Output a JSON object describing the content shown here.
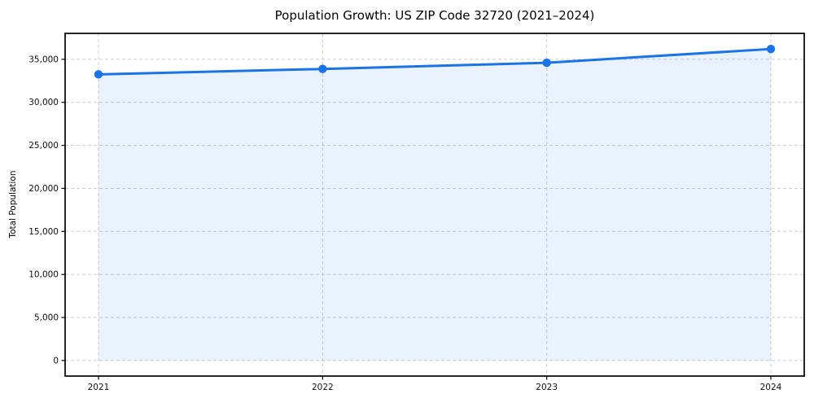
{
  "chart_data": {
    "type": "line",
    "title": "Population Growth: US ZIP Code 32720 (2021–2024)",
    "xlabel": "",
    "ylabel": "Total Population",
    "categories": [
      "2021",
      "2022",
      "2023",
      "2024"
    ],
    "series": [
      {
        "name": "Total Population",
        "values": [
          33250,
          33880,
          34600,
          36200
        ]
      }
    ],
    "yticks": [
      0,
      5000,
      10000,
      15000,
      20000,
      25000,
      30000,
      35000
    ],
    "ytick_labels": [
      "0",
      "5,000",
      "10,000",
      "15,000",
      "20,000",
      "25,000",
      "30,000",
      "35,000"
    ],
    "ylim": [
      -1810,
      38015
    ],
    "grid": true,
    "grid_style": "dashed",
    "legend": false,
    "area_fill": true,
    "marker": "circle",
    "colors": {
      "line": "#1a73e8",
      "marker": "#1a73e8",
      "area_fill": "rgba(26,115,232,0.09)",
      "grid": "#cdcdcd",
      "spine": "#000000",
      "text": "#111111",
      "background": "#ffffff"
    }
  }
}
